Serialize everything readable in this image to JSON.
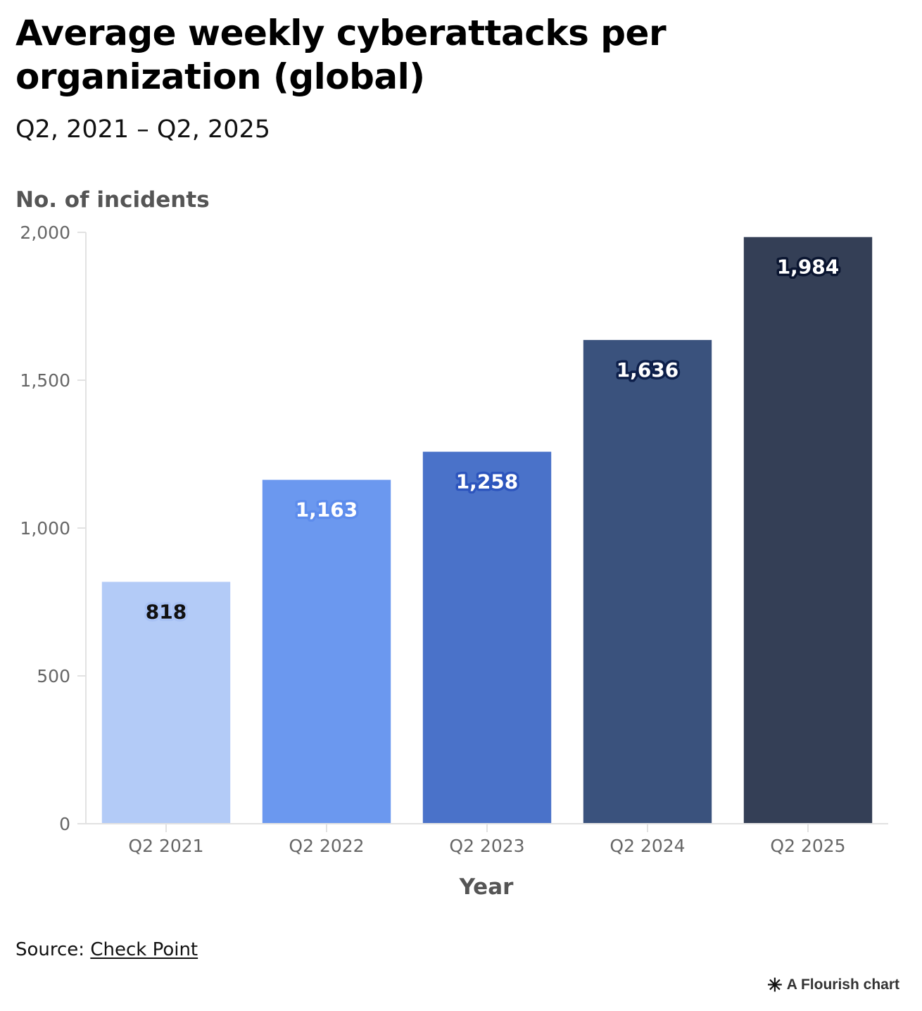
{
  "title": "Average weekly cyberattacks per organization (global)",
  "subtitle": "Q2, 2021 – Q2, 2025",
  "chart_data": {
    "type": "bar",
    "title": "Average weekly cyberattacks per organization (global)",
    "subtitle": "Q2, 2021 – Q2, 2025",
    "xlabel": "Year",
    "ylabel": "No. of incidents",
    "categories": [
      "Q2 2021",
      "Q2 2022",
      "Q2 2023",
      "Q2 2024",
      "Q2 2025"
    ],
    "values": [
      818,
      1163,
      1258,
      1636,
      1984
    ],
    "value_labels": [
      "818",
      "1,163",
      "1,258",
      "1,636",
      "1,984"
    ],
    "ylim": [
      0,
      2000
    ],
    "yticks": [
      0,
      500,
      1000,
      1500,
      2000
    ],
    "ytick_labels": [
      "0",
      "500",
      "1,000",
      "1,500",
      "2,000"
    ],
    "bar_colors": [
      "#b3cbf7",
      "#6b98ef",
      "#4a72c9",
      "#3a527d",
      "#343f56"
    ],
    "label_colors": [
      "#111111",
      "#ffffff",
      "#ffffff",
      "#ffffff",
      "#ffffff"
    ],
    "label_outline_colors": [
      "#a8c2f5",
      "#5d8cec",
      "#2d55bd",
      "#0d1f4a",
      "#0a1530"
    ],
    "grid": false,
    "legend": "none"
  },
  "source": {
    "prefix": "Source: ",
    "link_text": "Check Point"
  },
  "credit": {
    "icon": "flourish-star-icon",
    "text": "A Flourish chart"
  }
}
